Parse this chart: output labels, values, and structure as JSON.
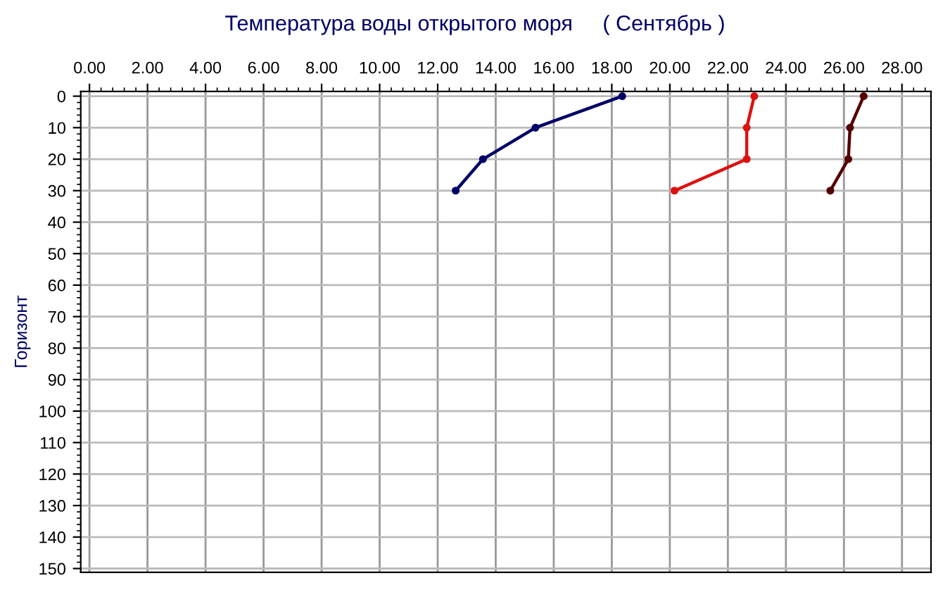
{
  "chart_data": {
    "type": "line",
    "title": "Температура воды открытого моря     ( Сентябрь )",
    "ylabel": "Горизонт",
    "series": [
      {
        "color": "#000066",
        "x": [
          18.36,
          15.37,
          13.56,
          12.62
        ],
        "values": [
          0,
          10,
          20,
          30
        ]
      },
      {
        "color": "#dd1111",
        "x": [
          22.91,
          22.65,
          22.65,
          20.16
        ],
        "values": [
          0,
          10,
          20,
          30
        ]
      },
      {
        "color": "#550000",
        "x": [
          26.68,
          26.21,
          26.15,
          25.53
        ],
        "values": [
          0,
          10,
          20,
          30
        ]
      }
    ],
    "xlim": [
      -0.3,
      29.0
    ],
    "ylim": [
      151.2,
      -1.5
    ],
    "xticks": [
      {
        "value": 0,
        "label": "0.00"
      },
      {
        "value": 2,
        "label": "2.00"
      },
      {
        "value": 4,
        "label": "4.00"
      },
      {
        "value": 6,
        "label": "6.00"
      },
      {
        "value": 8,
        "label": "8.00"
      },
      {
        "value": 10,
        "label": "10.00"
      },
      {
        "value": 12,
        "label": "12.00"
      },
      {
        "value": 14,
        "label": "14.00"
      },
      {
        "value": 16,
        "label": "16.00"
      },
      {
        "value": 18,
        "label": "18.00"
      },
      {
        "value": 20,
        "label": "20.00"
      },
      {
        "value": 22,
        "label": "22.00"
      },
      {
        "value": 24,
        "label": "24.00"
      },
      {
        "value": 26,
        "label": "26.00"
      },
      {
        "value": 28,
        "label": "28.00"
      }
    ],
    "yticks": [
      0,
      10,
      20,
      30,
      40,
      50,
      60,
      70,
      80,
      90,
      100,
      110,
      120,
      130,
      140,
      150
    ],
    "grid": true,
    "marker": "circle",
    "line_style": "solid"
  }
}
